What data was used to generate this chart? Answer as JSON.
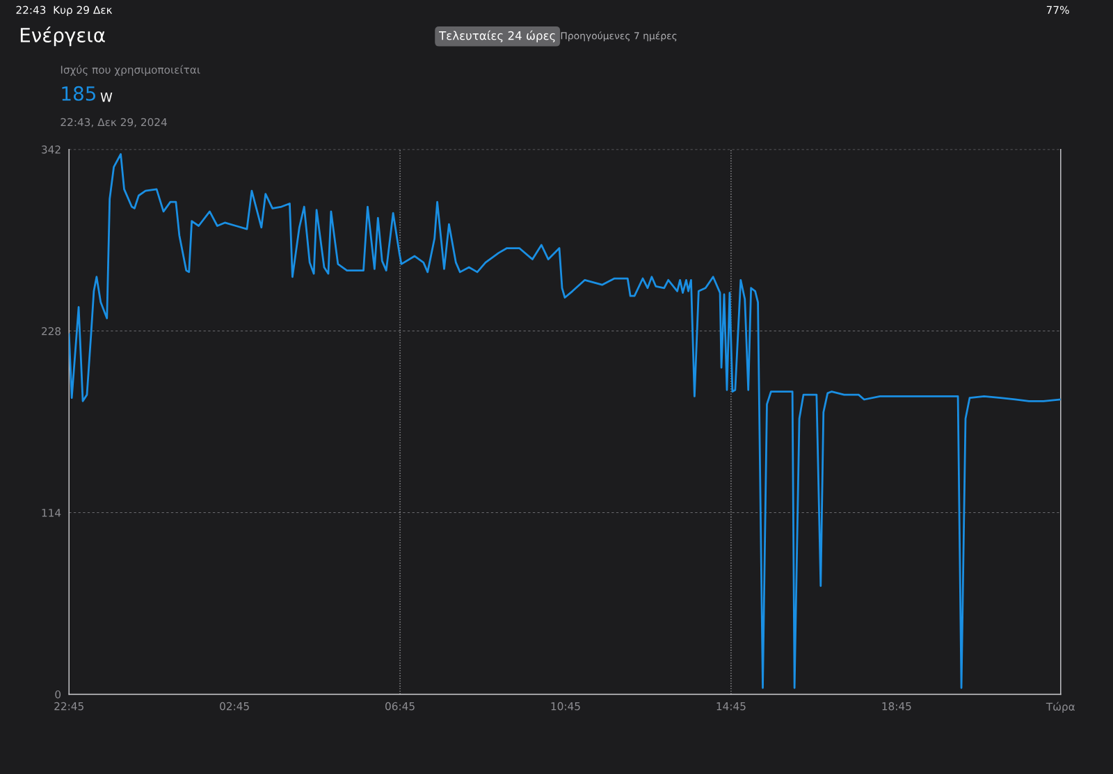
{
  "chart_data": {
    "type": "line",
    "title": "Ενέργεια",
    "subtitle": "Ισχύς που χρησιμοποιείται",
    "annotations": [
      "185",
      "W",
      "22:43, Δεκ 29, 2024",
      "Τελευταίες 24 ώρες",
      "Προηγούμενες 7 ημέρες",
      "22:43  Κυρ 29 Δεκ",
      "77%"
    ],
    "series": [
      {
        "color": "#1a8fe3",
        "x": [
          "2024-12-28T22:45",
          "2024-12-28T22:49",
          "2024-12-28T22:59",
          "2024-12-28T23:05",
          "2024-12-28T23:11",
          "2024-12-28T23:17",
          "2024-12-28T23:21",
          "2024-12-28T23:25",
          "2024-12-28T23:31",
          "2024-12-28T23:40",
          "2024-12-28T23:44",
          "2024-12-28T23:50",
          "2024-12-29T00:00",
          "2024-12-29T00:05",
          "2024-12-29T00:16",
          "2024-12-29T00:20",
          "2024-12-29T00:26",
          "2024-12-29T00:36",
          "2024-12-29T00:52",
          "2024-12-29T01:02",
          "2024-12-29T01:12",
          "2024-12-29T01:20",
          "2024-12-29T01:25",
          "2024-12-29T01:35",
          "2024-12-29T01:39",
          "2024-12-29T01:43",
          "2024-12-29T01:53",
          "2024-12-29T02:09",
          "2024-12-29T02:20",
          "2024-12-29T02:31",
          "2024-12-29T02:47",
          "2024-12-29T03:03",
          "2024-12-29T03:10",
          "2024-12-29T03:24",
          "2024-12-29T03:30",
          "2024-12-29T03:40",
          "2024-12-29T03:53",
          "2024-12-29T04:05",
          "2024-12-29T04:09",
          "2024-12-29T04:19",
          "2024-12-29T04:26",
          "2024-12-29T04:34",
          "2024-12-29T04:40",
          "2024-12-29T04:44",
          "2024-12-29T04:55",
          "2024-12-29T05:01",
          "2024-12-29T05:05",
          "2024-12-29T05:15",
          "2024-12-29T05:28",
          "2024-12-29T05:52",
          "2024-12-29T05:58",
          "2024-12-29T06:08",
          "2024-12-29T06:13",
          "2024-12-29T06:19",
          "2024-12-29T06:25",
          "2024-12-29T06:35",
          "2024-12-29T06:44",
          "2024-12-29T06:47",
          "2024-12-29T07:06",
          "2024-12-29T07:19",
          "2024-12-29T07:25",
          "2024-12-29T07:35",
          "2024-12-29T07:39",
          "2024-12-29T07:49",
          "2024-12-29T07:56",
          "2024-12-29T08:06",
          "2024-12-29T08:12",
          "2024-12-29T08:25",
          "2024-12-29T08:37",
          "2024-12-29T08:49",
          "2024-12-29T09:08",
          "2024-12-29T09:20",
          "2024-12-29T09:38",
          "2024-12-29T09:57",
          "2024-12-29T10:10",
          "2024-12-29T10:20",
          "2024-12-29T10:36",
          "2024-12-29T10:40",
          "2024-12-29T10:44",
          "2024-12-29T10:55",
          "2024-12-29T11:13",
          "2024-12-29T11:38",
          "2024-12-29T11:56",
          "2024-12-29T12:15",
          "2024-12-29T12:19",
          "2024-12-29T12:25",
          "2024-12-29T12:37",
          "2024-12-29T12:44",
          "2024-12-29T12:50",
          "2024-12-29T12:56",
          "2024-12-29T13:08",
          "2024-12-29T13:14",
          "2024-12-29T13:27",
          "2024-12-29T13:31",
          "2024-12-29T13:35",
          "2024-12-29T13:40",
          "2024-12-29T13:43",
          "2024-12-29T13:47",
          "2024-12-29T13:52",
          "2024-12-29T13:58",
          "2024-12-29T14:08",
          "2024-12-29T14:19",
          "2024-12-29T14:29",
          "2024-12-29T14:31",
          "2024-12-29T14:35",
          "2024-12-29T14:39",
          "2024-12-29T14:43",
          "2024-12-29T14:47",
          "2024-12-29T14:51",
          "2024-12-29T14:59",
          "2024-12-29T15:05",
          "2024-12-29T15:10",
          "2024-12-29T15:14",
          "2024-12-29T15:20",
          "2024-12-29T15:24",
          "2024-12-29T15:31",
          "2024-12-29T15:37",
          "2024-12-29T15:43",
          "2024-12-29T16:01",
          "2024-12-29T16:14",
          "2024-12-29T16:17",
          "2024-12-29T16:24",
          "2024-12-29T16:30",
          "2024-12-29T16:49",
          "2024-12-29T16:55",
          "2024-12-29T16:59",
          "2024-12-29T17:05",
          "2024-12-29T17:11",
          "2024-12-29T17:29",
          "2024-12-29T17:50",
          "2024-12-29T17:58",
          "2024-12-29T18:21",
          "2024-12-29T18:52",
          "2024-12-29T19:33",
          "2024-12-29T20:14",
          "2024-12-29T20:19",
          "2024-12-29T20:25",
          "2024-12-29T20:31",
          "2024-12-29T20:52",
          "2024-12-29T21:16",
          "2024-12-29T21:37",
          "2024-12-29T21:57",
          "2024-12-29T22:18",
          "2024-12-29T22:43"
        ],
        "values": [
          226,
          186,
          243,
          184,
          188,
          226,
          253,
          262,
          246,
          236,
          311,
          331,
          339,
          317,
          306,
          305,
          313,
          316,
          317,
          303,
          309,
          309,
          288,
          266,
          265,
          297,
          294,
          303,
          294,
          296,
          294,
          292,
          316,
          293,
          314,
          305,
          306,
          308,
          262,
          293,
          306,
          271,
          264,
          304,
          268,
          264,
          303,
          270,
          266,
          266,
          306,
          267,
          299,
          272,
          266,
          302,
          277,
          270,
          275,
          271,
          265,
          286,
          309,
          267,
          295,
          271,
          265,
          268,
          265,
          271,
          277,
          280,
          280,
          273,
          282,
          273,
          280,
          255,
          249,
          253,
          260,
          257,
          261,
          261,
          250,
          250,
          261,
          255,
          262,
          256,
          255,
          260,
          253,
          260,
          252,
          260,
          253,
          260,
          187,
          253,
          255,
          262,
          252,
          205,
          251,
          191,
          252,
          190,
          191,
          260,
          248,
          191,
          255,
          253,
          246,
          4,
          182,
          190,
          190,
          190,
          4,
          173,
          188,
          188,
          68,
          177,
          189,
          190,
          188,
          188,
          185,
          187,
          187,
          187,
          187,
          4,
          173,
          186,
          187,
          186,
          185,
          184,
          184,
          185
        ]
      }
    ],
    "xlim": [
      "2024-12-28T22:45",
      "2024-12-29T22:43"
    ],
    "xticks": [
      {
        "value": "2024-12-28T22:45",
        "label": "22:45"
      },
      {
        "value": "2024-12-29T02:45",
        "label": "02:45"
      },
      {
        "value": "2024-12-29T06:45",
        "label": "06:45"
      },
      {
        "value": "2024-12-29T10:45",
        "label": "10:45"
      },
      {
        "value": "2024-12-29T14:45",
        "label": "14:45"
      },
      {
        "value": "2024-12-29T18:45",
        "label": "18:45"
      },
      {
        "value": "2024-12-29T22:43",
        "label": "Τώρα"
      }
    ],
    "ylim": [
      0,
      342
    ],
    "yticks": [
      0,
      114,
      228,
      342
    ],
    "grid": "y",
    "ref_lines": [
      {
        "axis": "x",
        "value": "2024-12-29T06:45",
        "line_style": "dotted",
        "color": "#9a9a9e"
      },
      {
        "axis": "x",
        "value": "2024-12-29T14:45",
        "line_style": "dotted",
        "color": "#9a9a9e"
      }
    ],
    "line_style": "solid",
    "marker": "none"
  }
}
